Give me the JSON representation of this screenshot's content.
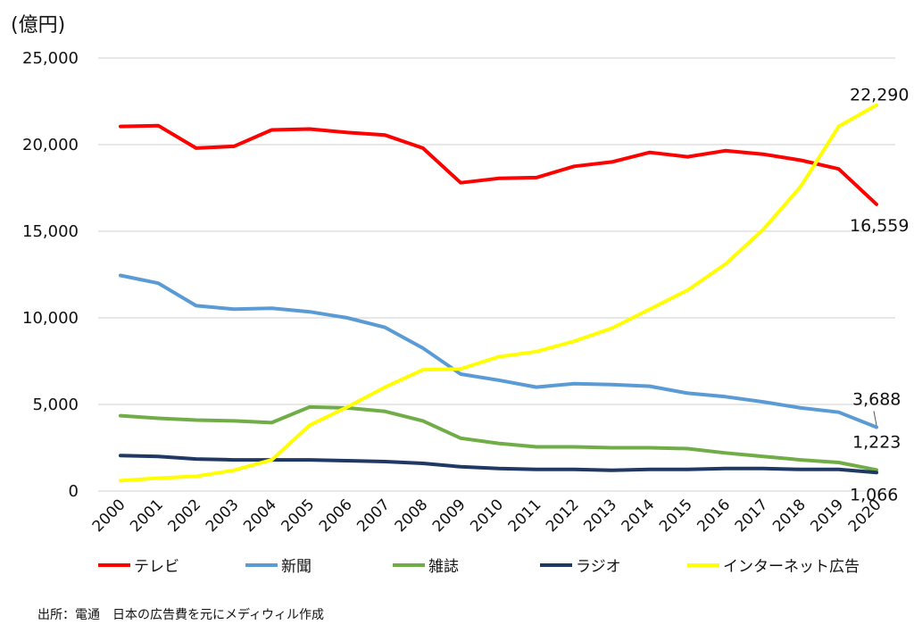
{
  "unit_label": "(億円)",
  "source_note": "出所：電通　日本の広告費を元にメディウィル作成",
  "chart_data": {
    "type": "line",
    "title": "",
    "xlabel": "",
    "ylabel": "(億円)",
    "ylim": [
      0,
      25000
    ],
    "yticks": [
      0,
      5000,
      10000,
      15000,
      20000,
      25000
    ],
    "ytick_labels": [
      "0",
      "5,000",
      "10,000",
      "15,000",
      "20,000",
      "25,000"
    ],
    "grid": true,
    "legend_position": "bottom",
    "categories": [
      "2000",
      "2001",
      "2002",
      "2003",
      "2004",
      "2005",
      "2006",
      "2007",
      "2008",
      "2009",
      "2010",
      "2011",
      "2012",
      "2013",
      "2014",
      "2015",
      "2016",
      "2017",
      "2018",
      "2019",
      "2020"
    ],
    "series": [
      {
        "name": "テレビ",
        "color": "#ff0000",
        "values": [
          21050,
          21100,
          19800,
          19900,
          20850,
          20900,
          20700,
          20550,
          19800,
          17800,
          18050,
          18100,
          18750,
          19000,
          19550,
          19300,
          19650,
          19450,
          19100,
          18600,
          16559
        ]
      },
      {
        "name": "新聞",
        "color": "#5b9bd5",
        "values": [
          12450,
          12000,
          10700,
          10500,
          10550,
          10350,
          10000,
          9450,
          8250,
          6750,
          6400,
          6000,
          6200,
          6150,
          6050,
          5650,
          5450,
          5150,
          4800,
          4550,
          3688
        ]
      },
      {
        "name": "雑誌",
        "color": "#70ad47",
        "values": [
          4350,
          4200,
          4100,
          4050,
          3950,
          4850,
          4800,
          4600,
          4050,
          3050,
          2750,
          2550,
          2550,
          2500,
          2500,
          2450,
          2200,
          2000,
          1800,
          1650,
          1223
        ]
      },
      {
        "name": "ラジオ",
        "color": "#1f3864",
        "values": [
          2050,
          2000,
          1850,
          1800,
          1800,
          1800,
          1750,
          1700,
          1600,
          1400,
          1300,
          1250,
          1250,
          1200,
          1250,
          1250,
          1300,
          1300,
          1250,
          1250,
          1066
        ]
      },
      {
        "name": "インターネット広告",
        "color": "#ffff00",
        "values": [
          600,
          750,
          850,
          1200,
          1800,
          3800,
          4850,
          6000,
          7000,
          7050,
          7750,
          8050,
          8650,
          9400,
          10500,
          11600,
          13100,
          15100,
          17600,
          21050,
          22290
        ]
      }
    ],
    "annotations": [
      {
        "text": "22,290",
        "series": "インターネット広告"
      },
      {
        "text": "16,559",
        "series": "テレビ"
      },
      {
        "text": "3,688",
        "series": "新聞"
      },
      {
        "text": "1,223",
        "series": "雑誌"
      },
      {
        "text": "1,066",
        "series": "ラジオ"
      }
    ]
  }
}
